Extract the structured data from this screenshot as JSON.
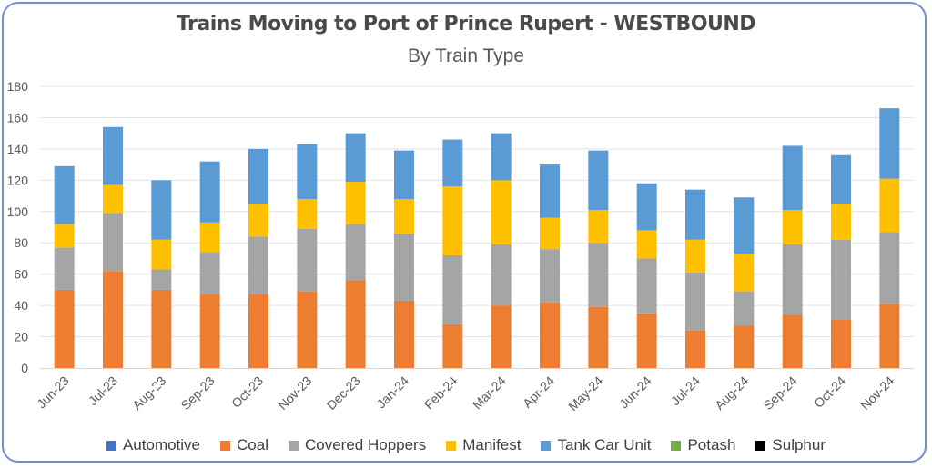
{
  "chart_data": {
    "type": "bar",
    "stacked": true,
    "title": "Trains Moving to Port of Prince Rupert - WESTBOUND",
    "subtitle": "By Train Type",
    "ylim": [
      0,
      180
    ],
    "yticks": [
      0,
      20,
      40,
      60,
      80,
      100,
      120,
      140,
      160,
      180
    ],
    "grid": true,
    "legend_position": "bottom",
    "categories": [
      "Jun-23",
      "Jul-23",
      "Aug-23",
      "Sep-23",
      "Oct-23",
      "Nov-23",
      "Dec-23",
      "Jan-24",
      "Feb-24",
      "Mar-24",
      "Apr-24",
      "May-24",
      "Jun-24",
      "Jul-24",
      "Aug-24",
      "Sep-24",
      "Oct-24",
      "Nov-24"
    ],
    "series": [
      {
        "name": "Automotive",
        "color": "#4472c4",
        "values": [
          0,
          0,
          0,
          0,
          0,
          0,
          0,
          0,
          0,
          0,
          0,
          0,
          0,
          0,
          0,
          0,
          0,
          0
        ]
      },
      {
        "name": "Coal",
        "color": "#ed7d31",
        "values": [
          50,
          62,
          50,
          47,
          47,
          49,
          56,
          43,
          28,
          40,
          42,
          39,
          35,
          24,
          27,
          34,
          31,
          41
        ]
      },
      {
        "name": "Covered Hoppers",
        "color": "#a5a5a5",
        "values": [
          27,
          37,
          13,
          27,
          37,
          40,
          36,
          43,
          44,
          39,
          34,
          41,
          35,
          37,
          22,
          45,
          51,
          46
        ]
      },
      {
        "name": "Manifest",
        "color": "#ffc000",
        "values": [
          15,
          18,
          19,
          19,
          21,
          19,
          27,
          22,
          44,
          41,
          20,
          21,
          18,
          21,
          24,
          22,
          23,
          34
        ]
      },
      {
        "name": "Tank Car Unit",
        "color": "#5b9bd5",
        "values": [
          37,
          37,
          38,
          39,
          35,
          35,
          31,
          31,
          30,
          30,
          34,
          38,
          30,
          32,
          36,
          41,
          31,
          45
        ]
      },
      {
        "name": "Potash",
        "color": "#70ad47",
        "values": [
          0,
          0,
          0,
          0,
          0,
          0,
          0,
          0,
          0,
          0,
          0,
          0,
          0,
          0,
          0,
          0,
          0,
          0
        ]
      },
      {
        "name": "Sulphur",
        "color": "#000000",
        "values": [
          0,
          0,
          0,
          0,
          0,
          0,
          0,
          0,
          0,
          0,
          0,
          0,
          0,
          0,
          0,
          0,
          0,
          0
        ]
      }
    ]
  }
}
